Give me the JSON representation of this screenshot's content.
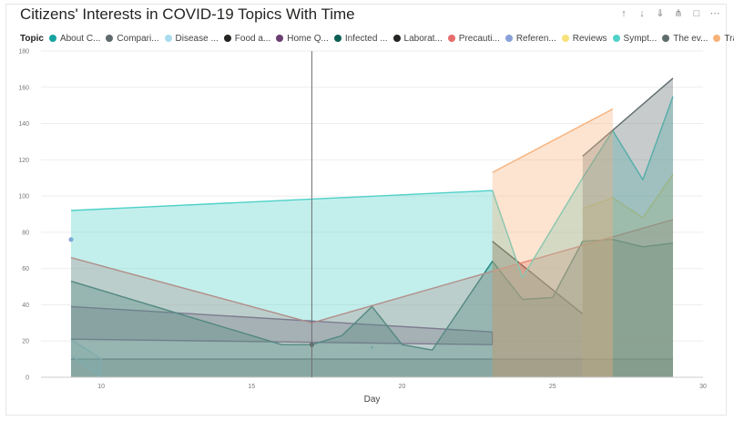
{
  "chart_data": {
    "type": "area",
    "title": "Citizens' Interests in COVID-19 Topics With Time",
    "legend_title": "Topic",
    "legend_placement": "top-left",
    "xlabel": "Day",
    "ylabel": "",
    "xlim": [
      8,
      30
    ],
    "ylim": [
      0,
      180
    ],
    "x_ticks": [
      10,
      15,
      20,
      25,
      30
    ],
    "y_ticks": [
      0,
      20,
      40,
      60,
      80,
      100,
      120,
      140,
      160,
      180
    ],
    "gridlines": true,
    "reference_line_x": 17,
    "series": [
      {
        "name": "About C...",
        "color": "#15a3a0",
        "values": [
          [
            19,
            17
          ],
          [
            19,
            16
          ]
        ]
      },
      {
        "name": "Compari...",
        "color": "#5f6b6d",
        "values": [
          [
            9,
            10
          ],
          [
            29,
            10
          ]
        ]
      },
      {
        "name": "Disease ...",
        "color": "#a9dcef",
        "values": [
          [
            9,
            21
          ],
          [
            10,
            10
          ],
          [
            10,
            0
          ],
          [
            9,
            12
          ]
        ]
      },
      {
        "name": "Food a...",
        "color": "#252423",
        "values": [
          [
            23,
            75
          ],
          [
            26,
            35
          ]
        ]
      },
      {
        "name": "Home Q...",
        "color": "#6b3f72",
        "values": [
          [
            9,
            39
          ],
          [
            23,
            25
          ],
          [
            23,
            18
          ],
          [
            9,
            21
          ]
        ]
      },
      {
        "name": "Infected ...",
        "color": "#0b5e54",
        "values": [
          [
            9,
            53
          ],
          [
            16,
            18
          ],
          [
            17,
            18
          ],
          [
            18,
            23
          ],
          [
            19,
            39
          ],
          [
            20,
            18
          ],
          [
            21,
            15
          ],
          [
            23,
            64
          ],
          [
            24,
            43
          ],
          [
            25,
            44
          ],
          [
            26,
            75
          ],
          [
            27,
            76
          ],
          [
            28,
            72
          ],
          [
            29,
            74
          ]
        ]
      },
      {
        "name": "Laborat...",
        "color": "#252423",
        "values": [
          [
            17,
            18
          ]
        ]
      },
      {
        "name": "Precauti...",
        "color": "#e66c6c",
        "values": [
          [
            9,
            66
          ],
          [
            17,
            30
          ],
          [
            29,
            87
          ]
        ]
      },
      {
        "name": "Referen...",
        "color": "#8aa1d8",
        "values": [
          [
            9,
            76
          ]
        ]
      },
      {
        "name": "Reviews",
        "color": "#f6e27a",
        "values": [
          [
            26,
            93
          ],
          [
            27,
            99
          ],
          [
            28,
            88
          ],
          [
            29,
            112
          ]
        ]
      },
      {
        "name": "Sympt...",
        "color": "#4fd1c9",
        "values": [
          [
            9,
            92
          ],
          [
            23,
            103
          ],
          [
            24,
            55
          ],
          [
            26,
            110
          ],
          [
            27,
            136
          ],
          [
            28,
            109
          ],
          [
            29,
            155
          ]
        ]
      },
      {
        "name": "The ev...",
        "color": "#5f6b6d",
        "values": [
          [
            26,
            122
          ],
          [
            29,
            165
          ]
        ]
      },
      {
        "name": "Transfer ...",
        "color": "#f7b27a",
        "values": [
          [
            23,
            113
          ],
          [
            27,
            148
          ]
        ]
      }
    ]
  },
  "toolbar": {
    "icons": [
      "arrow-up-icon",
      "arrow-down-icon",
      "double-arrow-down-icon",
      "expand-hierarchy-icon",
      "focus-mode-icon",
      "more-options-icon"
    ]
  }
}
